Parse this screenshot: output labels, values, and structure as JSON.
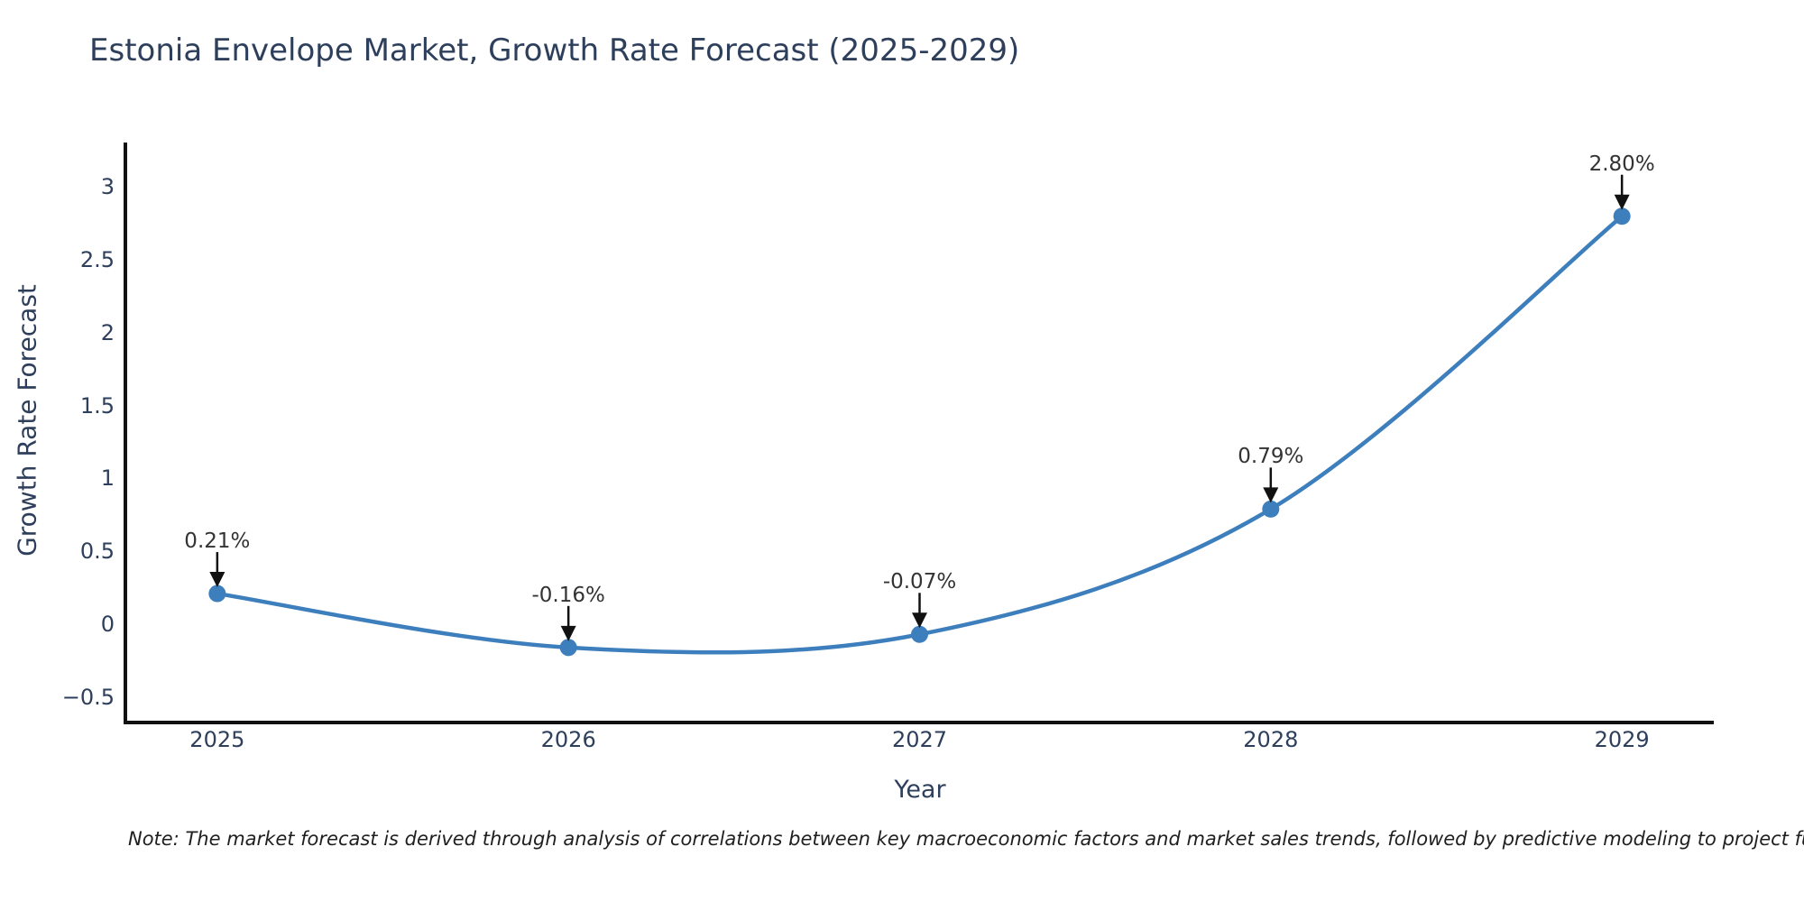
{
  "chart_data": {
    "type": "line",
    "title": "Estonia Envelope Market, Growth Rate Forecast (2025-2029)",
    "xlabel": "Year",
    "ylabel": "Growth Rate Forecast",
    "x": [
      2025,
      2026,
      2027,
      2028,
      2029
    ],
    "y": [
      0.21,
      -0.16,
      -0.07,
      0.79,
      2.8
    ],
    "point_labels": [
      "0.21%",
      "-0.16%",
      "-0.07%",
      "0.79%",
      "2.80%"
    ],
    "x_tick_labels": [
      "2025",
      "2026",
      "2027",
      "2028",
      "2029"
    ],
    "y_ticks": [
      3,
      2.5,
      2,
      1.5,
      1,
      0.5,
      0,
      -0.5
    ],
    "y_tick_labels": [
      "3",
      "2.5",
      "2",
      "1.5",
      "1",
      "0.5",
      "0",
      "−0.5"
    ],
    "xlim": [
      2024.7384,
      2029.2616
    ],
    "ylim": [
      -0.675,
      3.306
    ],
    "grid": false,
    "legend": null,
    "line_shape": "spline",
    "colors": {
      "line": "#3d7ebd",
      "marker": "#3d7ebd",
      "arrow": "#111111",
      "spine": "#111111",
      "axis_text": "#2e3f5c",
      "annotation_text": "#333333"
    }
  },
  "note": "Note: The market forecast is derived through analysis of correlations between key macroeconomic factors and market sales trends, followed by predictive modeling to project future sa"
}
